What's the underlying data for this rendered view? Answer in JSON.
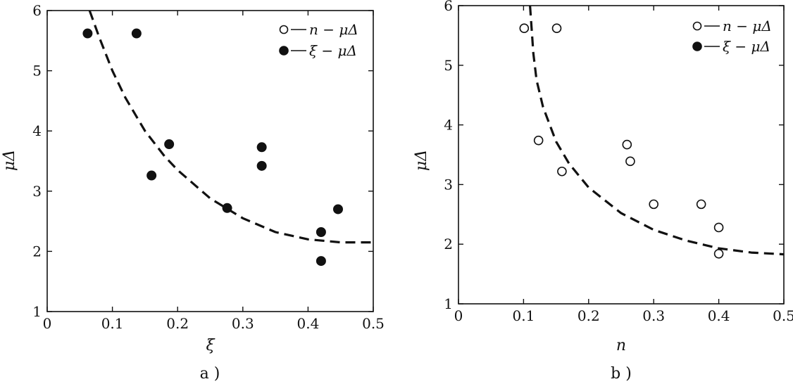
{
  "chart_data": [
    {
      "type": "scatter",
      "panel_label": "a )",
      "xlabel": "ξ",
      "ylabel": "μΔ",
      "xlim": [
        0,
        0.5
      ],
      "ylim": [
        1,
        6
      ],
      "x_ticks": [
        "0",
        "0.1",
        "0.2",
        "0.3",
        "0.4",
        "0.5"
      ],
      "y_ticks": [
        "1",
        "2",
        "3",
        "4",
        "5",
        "6"
      ],
      "legend_position": "top-right",
      "legend": [
        {
          "marker": "open-circle",
          "label": "n − μΔ"
        },
        {
          "marker": "filled-circle",
          "label": "ξ − μΔ"
        }
      ],
      "series": [
        {
          "marker": "filled-circle",
          "points": [
            {
              "x": 0.062,
              "y": 5.62
            },
            {
              "x": 0.137,
              "y": 5.62
            },
            {
              "x": 0.16,
              "y": 3.26
            },
            {
              "x": 0.187,
              "y": 3.78
            },
            {
              "x": 0.276,
              "y": 2.72
            },
            {
              "x": 0.329,
              "y": 3.73
            },
            {
              "x": 0.329,
              "y": 3.42
            },
            {
              "x": 0.42,
              "y": 2.32
            },
            {
              "x": 0.42,
              "y": 1.84
            },
            {
              "x": 0.446,
              "y": 2.7
            }
          ]
        }
      ],
      "fit_curve": {
        "style": "dashed",
        "points": [
          {
            "x": 0.065,
            "y": 6.0
          },
          {
            "x": 0.08,
            "y": 5.55
          },
          {
            "x": 0.1,
            "y": 5.0
          },
          {
            "x": 0.12,
            "y": 4.55
          },
          {
            "x": 0.15,
            "y": 4.0
          },
          {
            "x": 0.18,
            "y": 3.58
          },
          {
            "x": 0.2,
            "y": 3.35
          },
          {
            "x": 0.25,
            "y": 2.88
          },
          {
            "x": 0.3,
            "y": 2.55
          },
          {
            "x": 0.35,
            "y": 2.32
          },
          {
            "x": 0.4,
            "y": 2.2
          },
          {
            "x": 0.45,
            "y": 2.15
          },
          {
            "x": 0.5,
            "y": 2.15
          }
        ]
      }
    },
    {
      "type": "scatter",
      "panel_label": "b )",
      "xlabel": "n",
      "ylabel": "μΔ",
      "xlim": [
        0,
        0.5
      ],
      "ylim": [
        1,
        6
      ],
      "x_ticks": [
        "0",
        "0.1",
        "0.2",
        "0.3",
        "0.4",
        "0.5"
      ],
      "y_ticks": [
        "1",
        "2",
        "3",
        "4",
        "5",
        "6"
      ],
      "legend_position": "top-right",
      "legend": [
        {
          "marker": "open-circle",
          "label": "n − μΔ"
        },
        {
          "marker": "filled-circle",
          "label": "ξ − μΔ"
        }
      ],
      "series": [
        {
          "marker": "open-circle",
          "points": [
            {
              "x": 0.101,
              "y": 5.62
            },
            {
              "x": 0.151,
              "y": 5.62
            },
            {
              "x": 0.123,
              "y": 3.74
            },
            {
              "x": 0.159,
              "y": 3.22
            },
            {
              "x": 0.259,
              "y": 3.67
            },
            {
              "x": 0.264,
              "y": 3.39
            },
            {
              "x": 0.3,
              "y": 2.67
            },
            {
              "x": 0.373,
              "y": 2.67
            },
            {
              "x": 0.4,
              "y": 2.28
            },
            {
              "x": 0.4,
              "y": 1.84
            }
          ]
        }
      ],
      "fit_curve": {
        "style": "dashed",
        "points": [
          {
            "x": 0.11,
            "y": 6.0
          },
          {
            "x": 0.115,
            "y": 5.2
          },
          {
            "x": 0.12,
            "y": 4.75
          },
          {
            "x": 0.13,
            "y": 4.3
          },
          {
            "x": 0.15,
            "y": 3.72
          },
          {
            "x": 0.17,
            "y": 3.35
          },
          {
            "x": 0.2,
            "y": 2.95
          },
          {
            "x": 0.25,
            "y": 2.52
          },
          {
            "x": 0.3,
            "y": 2.24
          },
          {
            "x": 0.35,
            "y": 2.06
          },
          {
            "x": 0.4,
            "y": 1.93
          },
          {
            "x": 0.45,
            "y": 1.86
          },
          {
            "x": 0.5,
            "y": 1.83
          }
        ]
      }
    }
  ]
}
